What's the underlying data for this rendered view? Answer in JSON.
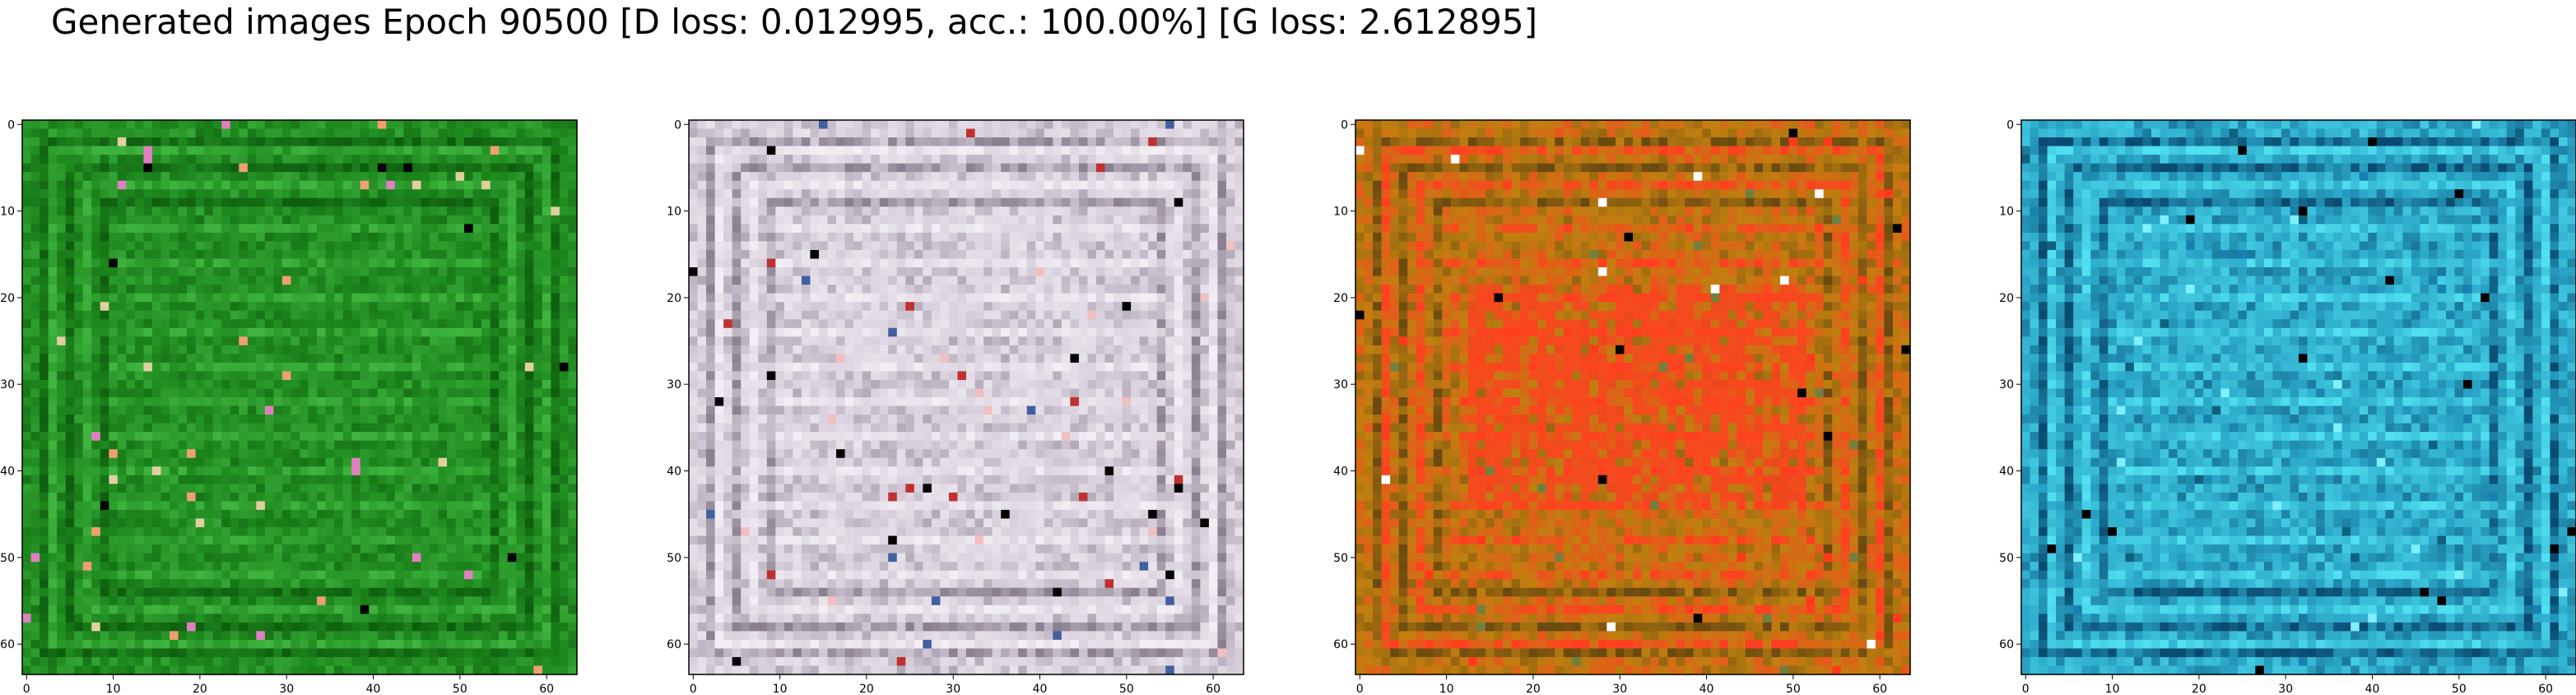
{
  "figure": {
    "title": "Generated images Epoch 90500 [D loss: 0.012995, acc.: 100.00%] [G loss: 2.612895]"
  },
  "chart_data": [
    {
      "type": "heatmap",
      "description_colors": {
        "base": "#1f8a1f",
        "light": "#3fb53f",
        "dark": "#0f5e0f",
        "accents": [
          "#f0a070",
          "#e0d0a0",
          "#000000",
          "#e080c0"
        ]
      },
      "xlim": [
        0,
        63
      ],
      "ylim": [
        63,
        0
      ],
      "xticks": [
        0,
        10,
        20,
        30,
        40,
        50,
        60
      ],
      "yticks": [
        0,
        10,
        20,
        30,
        40,
        50,
        60
      ]
    },
    {
      "type": "heatmap",
      "description_colors": {
        "base": "#d8d0dc",
        "light": "#f2eef4",
        "dark": "#8a8090",
        "accents": [
          "#000000",
          "#4060a0",
          "#c03030",
          "#f0c0c0"
        ]
      },
      "xlim": [
        0,
        63
      ],
      "ylim": [
        63,
        0
      ],
      "xticks": [
        0,
        10,
        20,
        30,
        40,
        50,
        60
      ],
      "yticks": [
        0,
        10,
        20,
        30,
        40,
        50,
        60
      ]
    },
    {
      "type": "heatmap",
      "description_colors": {
        "base": "#c08010",
        "light": "#ff4020",
        "dark": "#6a4a10",
        "accents": [
          "#000000",
          "#ffffff",
          "#ff3a1a",
          "#708040"
        ]
      },
      "xlim": [
        0,
        63
      ],
      "ylim": [
        63,
        0
      ],
      "xticks": [
        0,
        10,
        20,
        30,
        40,
        50,
        60
      ],
      "yticks": [
        0,
        10,
        20,
        30,
        40,
        50,
        60
      ]
    },
    {
      "type": "heatmap",
      "description_colors": {
        "base": "#2aa6c8",
        "light": "#50e0f0",
        "dark": "#0a4a70",
        "accents": [
          "#000000",
          "#80f0ff",
          "#106080",
          "#1880b0"
        ]
      },
      "xlim": [
        0,
        63
      ],
      "ylim": [
        63,
        0
      ],
      "xticks": [
        0,
        10,
        20,
        30,
        40,
        50,
        60
      ],
      "yticks": [
        0,
        10,
        20,
        30,
        40,
        50,
        60
      ]
    }
  ]
}
